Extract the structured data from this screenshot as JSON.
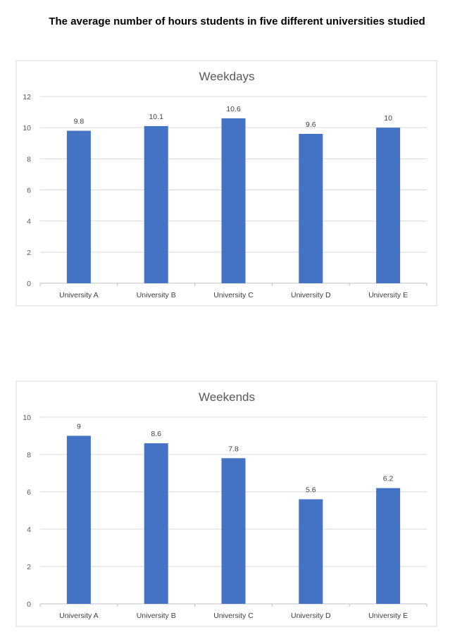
{
  "page": {
    "title": "The average number of hours students in five different universities studied"
  },
  "chart_data": [
    {
      "type": "bar",
      "title": "Weekdays",
      "categories": [
        "University A",
        "University B",
        "University C",
        "University D",
        "University E"
      ],
      "values": [
        9.8,
        10.1,
        10.6,
        9.6,
        10
      ],
      "value_labels": [
        "9.8",
        "10.1",
        "10.6",
        "9.6",
        "10"
      ],
      "ylim": [
        0,
        12
      ],
      "yticks": [
        0,
        2,
        4,
        6,
        8,
        10,
        12
      ],
      "ytick_labels": [
        "0",
        "2",
        "4",
        "6",
        "8",
        "10",
        "12"
      ],
      "xlabel": "",
      "ylabel": "",
      "grid": true,
      "bar_color": "#4472c4"
    },
    {
      "type": "bar",
      "title": "Weekends",
      "categories": [
        "University A",
        "University B",
        "University C",
        "University D",
        "University E"
      ],
      "values": [
        9,
        8.6,
        7.8,
        5.6,
        6.2
      ],
      "value_labels": [
        "9",
        "8.6",
        "7.8",
        "5.6",
        "6.2"
      ],
      "ylim": [
        0,
        10
      ],
      "yticks": [
        0,
        2,
        4,
        6,
        8,
        10
      ],
      "ytick_labels": [
        "0",
        "2",
        "4",
        "6",
        "8",
        "10"
      ],
      "xlabel": "",
      "ylabel": "",
      "grid": true,
      "bar_color": "#4472c4"
    }
  ]
}
